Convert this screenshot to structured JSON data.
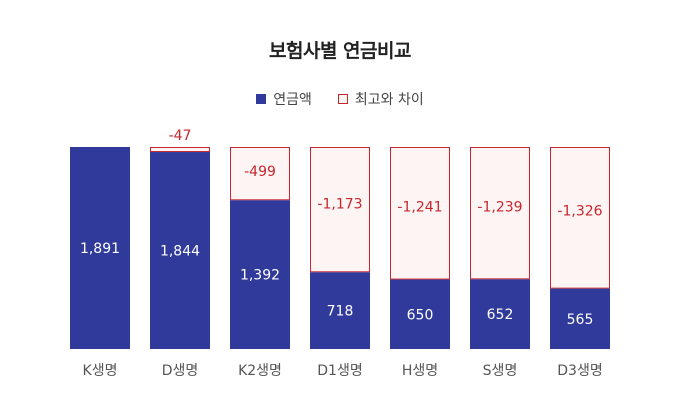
{
  "chart_data": {
    "type": "bar",
    "stacked": true,
    "title": "보험사별 연금비교",
    "categories": [
      "K생명",
      "D생명",
      "K2생명",
      "D1생명",
      "H생명",
      "S생명",
      "D3생명"
    ],
    "series": [
      {
        "name": "연금액",
        "values": [
          1891,
          1844,
          1392,
          718,
          650,
          652,
          565
        ],
        "color": "#303a9b"
      },
      {
        "name": "최고와 차이",
        "values": [
          0,
          47,
          499,
          1173,
          1241,
          1239,
          1326
        ],
        "color": "#fdf4f4",
        "border": "#c8262e"
      }
    ],
    "value_labels": {
      "base": [
        "1,891",
        "1,844",
        "1,392",
        "718",
        "650",
        "652",
        "565"
      ],
      "gap": [
        "",
        "-47",
        "-499",
        "-1,173",
        "-1,241",
        "-1,239",
        "-1,326"
      ]
    },
    "ylim": [
      0,
      1891
    ],
    "grid": false,
    "legend_position": "top-center"
  }
}
